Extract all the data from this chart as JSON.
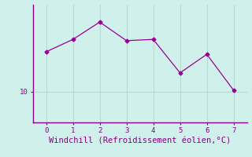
{
  "x": [
    0,
    1,
    2,
    3,
    4,
    5,
    6,
    7
  ],
  "y": [
    13.2,
    14.2,
    15.6,
    14.1,
    14.2,
    11.5,
    13.0,
    10.1
  ],
  "line_color": "#990099",
  "marker": "D",
  "marker_size": 2.5,
  "xlabel": "Windchill (Refroidissement éolien,°C)",
  "xlabel_fontsize": 7.5,
  "background_color": "#cff0eb",
  "grid_color": "#b0ddd8",
  "spine_color": "#880088",
  "tick_color": "#880088",
  "ylim": [
    7.5,
    17.0
  ],
  "xlim": [
    -0.5,
    7.5
  ],
  "yticks": [
    10
  ],
  "xticks": [
    0,
    1,
    2,
    3,
    4,
    5,
    6,
    7
  ]
}
